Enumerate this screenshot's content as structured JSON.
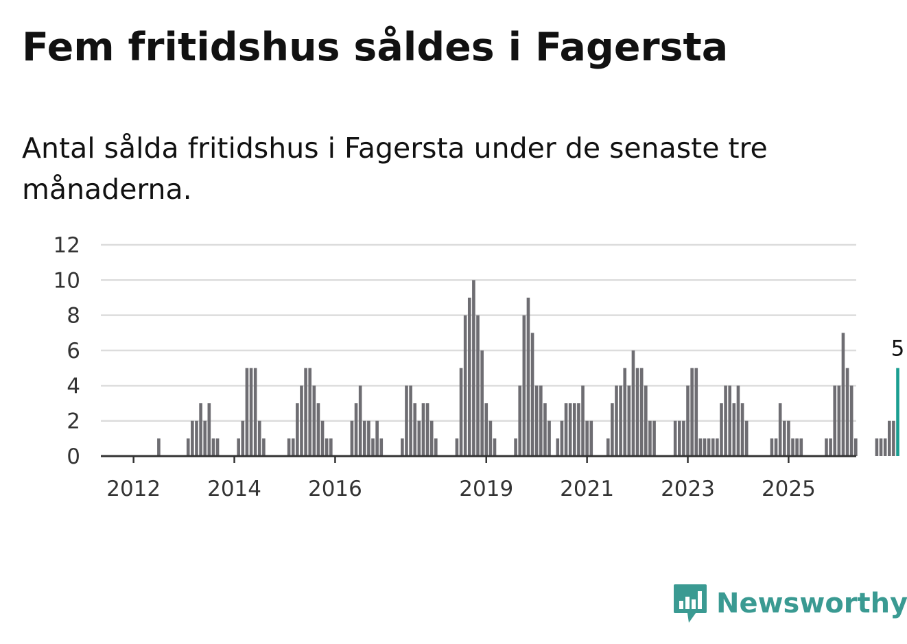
{
  "title": "Fem fritidshus såldes i Fagersta",
  "subtitle": "Antal sålda fritidshus i Fagersta under de senaste tre månaderna.",
  "brand": {
    "name": "Newsworthy",
    "icon": "newsworthy-logo-icon",
    "color": "#3a9a92"
  },
  "colors": {
    "bar": "#6e6d72",
    "highlight": "#1a9e91",
    "grid": "#dcdcdc",
    "axis": "#333333"
  },
  "chart_data": {
    "type": "bar",
    "x_unit": "month",
    "start_month": "2011-09",
    "end_month": "2025-08",
    "ylim": [
      0,
      12
    ],
    "y_ticks": [
      "0",
      "2",
      "4",
      "6",
      "8",
      "10",
      "12"
    ],
    "x_ticks": [
      "2012",
      "2014",
      "2016",
      "2019",
      "2021",
      "2023",
      "2025"
    ],
    "grid": true,
    "highlight_last": true,
    "last_value_label": "5",
    "values": [
      0,
      0,
      0,
      0,
      0,
      0,
      0,
      0,
      0,
      0,
      1,
      0,
      0,
      0,
      0,
      0,
      0,
      1,
      2,
      2,
      3,
      2,
      3,
      1,
      1,
      0,
      0,
      0,
      0,
      1,
      2,
      5,
      5,
      5,
      2,
      1,
      0,
      0,
      0,
      0,
      0,
      1,
      1,
      3,
      4,
      5,
      5,
      4,
      3,
      2,
      1,
      1,
      0,
      0,
      0,
      0,
      2,
      3,
      4,
      2,
      2,
      1,
      2,
      1,
      0,
      0,
      0,
      0,
      1,
      4,
      4,
      3,
      2,
      3,
      3,
      2,
      1,
      0,
      0,
      0,
      0,
      1,
      5,
      8,
      9,
      10,
      8,
      6,
      3,
      2,
      1,
      0,
      0,
      0,
      0,
      1,
      4,
      8,
      9,
      7,
      4,
      4,
      3,
      2,
      0,
      1,
      2,
      3,
      3,
      3,
      3,
      4,
      2,
      2,
      0,
      0,
      0,
      1,
      3,
      4,
      4,
      5,
      4,
      6,
      5,
      5,
      4,
      2,
      2,
      0,
      0,
      0,
      0,
      2,
      2,
      2,
      4,
      5,
      5,
      1,
      1,
      1,
      1,
      1,
      3,
      4,
      4,
      3,
      4,
      3,
      2,
      0,
      0,
      0,
      0,
      0,
      1,
      1,
      3,
      2,
      2,
      1,
      1,
      1,
      0,
      0,
      0,
      0,
      0,
      1,
      1,
      4,
      4,
      7,
      5,
      4,
      1,
      0,
      0,
      0,
      0,
      1,
      1,
      1,
      2,
      2,
      5
    ]
  }
}
